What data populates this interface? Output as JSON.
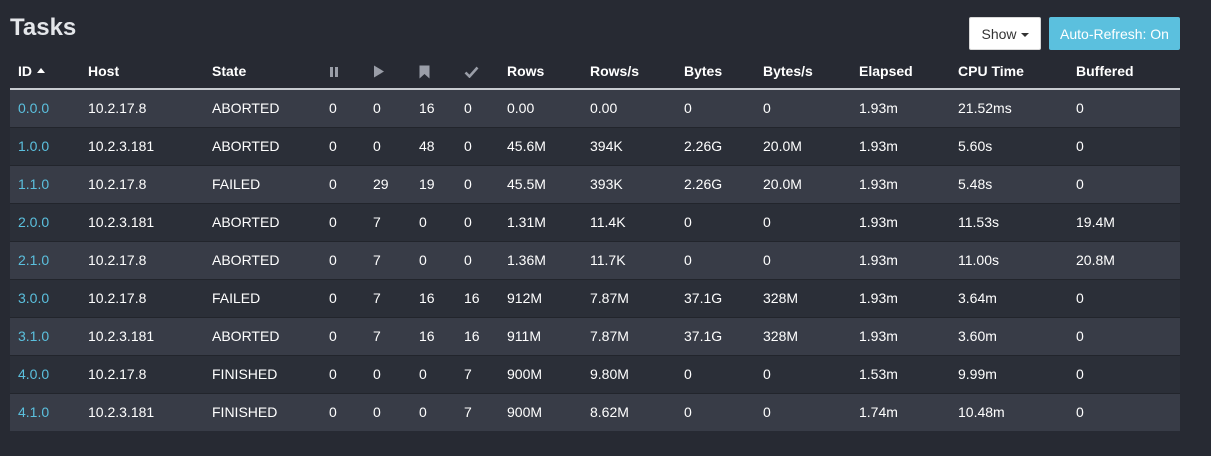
{
  "title": "Tasks",
  "toolbar": {
    "show_label": "Show",
    "refresh_label": "Auto-Refresh: On"
  },
  "columns": {
    "id": "ID",
    "host": "Host",
    "state": "State",
    "paused_icon": "pause-icon",
    "running_icon": "play-icon",
    "blocked_icon": "bookmark-icon",
    "finished_icon": "check-icon",
    "rows": "Rows",
    "rows_per_sec": "Rows/s",
    "bytes": "Bytes",
    "bytes_per_sec": "Bytes/s",
    "elapsed": "Elapsed",
    "cpu_time": "CPU Time",
    "buffered": "Buffered"
  },
  "colors": {
    "background": "#272a33",
    "row_odd": "#383c47",
    "row_even": "#2b2f38",
    "link": "#5bc0de",
    "accent_button": "#5bc0de"
  },
  "rows": [
    {
      "id": "0.0.0",
      "host": "10.2.17.8",
      "state": "ABORTED",
      "paused": "0",
      "running": "0",
      "blocked": "16",
      "finished": "0",
      "rows": "0.00",
      "rows_per_sec": "0.00",
      "bytes": "0",
      "bytes_per_sec": "0",
      "elapsed": "1.93m",
      "cpu_time": "21.52ms",
      "buffered": "0"
    },
    {
      "id": "1.0.0",
      "host": "10.2.3.181",
      "state": "ABORTED",
      "paused": "0",
      "running": "0",
      "blocked": "48",
      "finished": "0",
      "rows": "45.6M",
      "rows_per_sec": "394K",
      "bytes": "2.26G",
      "bytes_per_sec": "20.0M",
      "elapsed": "1.93m",
      "cpu_time": "5.60s",
      "buffered": "0"
    },
    {
      "id": "1.1.0",
      "host": "10.2.17.8",
      "state": "FAILED",
      "paused": "0",
      "running": "29",
      "blocked": "19",
      "finished": "0",
      "rows": "45.5M",
      "rows_per_sec": "393K",
      "bytes": "2.26G",
      "bytes_per_sec": "20.0M",
      "elapsed": "1.93m",
      "cpu_time": "5.48s",
      "buffered": "0"
    },
    {
      "id": "2.0.0",
      "host": "10.2.3.181",
      "state": "ABORTED",
      "paused": "0",
      "running": "7",
      "blocked": "0",
      "finished": "0",
      "rows": "1.31M",
      "rows_per_sec": "11.4K",
      "bytes": "0",
      "bytes_per_sec": "0",
      "elapsed": "1.93m",
      "cpu_time": "11.53s",
      "buffered": "19.4M"
    },
    {
      "id": "2.1.0",
      "host": "10.2.17.8",
      "state": "ABORTED",
      "paused": "0",
      "running": "7",
      "blocked": "0",
      "finished": "0",
      "rows": "1.36M",
      "rows_per_sec": "11.7K",
      "bytes": "0",
      "bytes_per_sec": "0",
      "elapsed": "1.93m",
      "cpu_time": "11.00s",
      "buffered": "20.8M"
    },
    {
      "id": "3.0.0",
      "host": "10.2.17.8",
      "state": "FAILED",
      "paused": "0",
      "running": "7",
      "blocked": "16",
      "finished": "16",
      "rows": "912M",
      "rows_per_sec": "7.87M",
      "bytes": "37.1G",
      "bytes_per_sec": "328M",
      "elapsed": "1.93m",
      "cpu_time": "3.64m",
      "buffered": "0"
    },
    {
      "id": "3.1.0",
      "host": "10.2.3.181",
      "state": "ABORTED",
      "paused": "0",
      "running": "7",
      "blocked": "16",
      "finished": "16",
      "rows": "911M",
      "rows_per_sec": "7.87M",
      "bytes": "37.1G",
      "bytes_per_sec": "328M",
      "elapsed": "1.93m",
      "cpu_time": "3.60m",
      "buffered": "0"
    },
    {
      "id": "4.0.0",
      "host": "10.2.17.8",
      "state": "FINISHED",
      "paused": "0",
      "running": "0",
      "blocked": "0",
      "finished": "7",
      "rows": "900M",
      "rows_per_sec": "9.80M",
      "bytes": "0",
      "bytes_per_sec": "0",
      "elapsed": "1.53m",
      "cpu_time": "9.99m",
      "buffered": "0"
    },
    {
      "id": "4.1.0",
      "host": "10.2.3.181",
      "state": "FINISHED",
      "paused": "0",
      "running": "0",
      "blocked": "0",
      "finished": "7",
      "rows": "900M",
      "rows_per_sec": "8.62M",
      "bytes": "0",
      "bytes_per_sec": "0",
      "elapsed": "1.74m",
      "cpu_time": "10.48m",
      "buffered": "0"
    }
  ]
}
